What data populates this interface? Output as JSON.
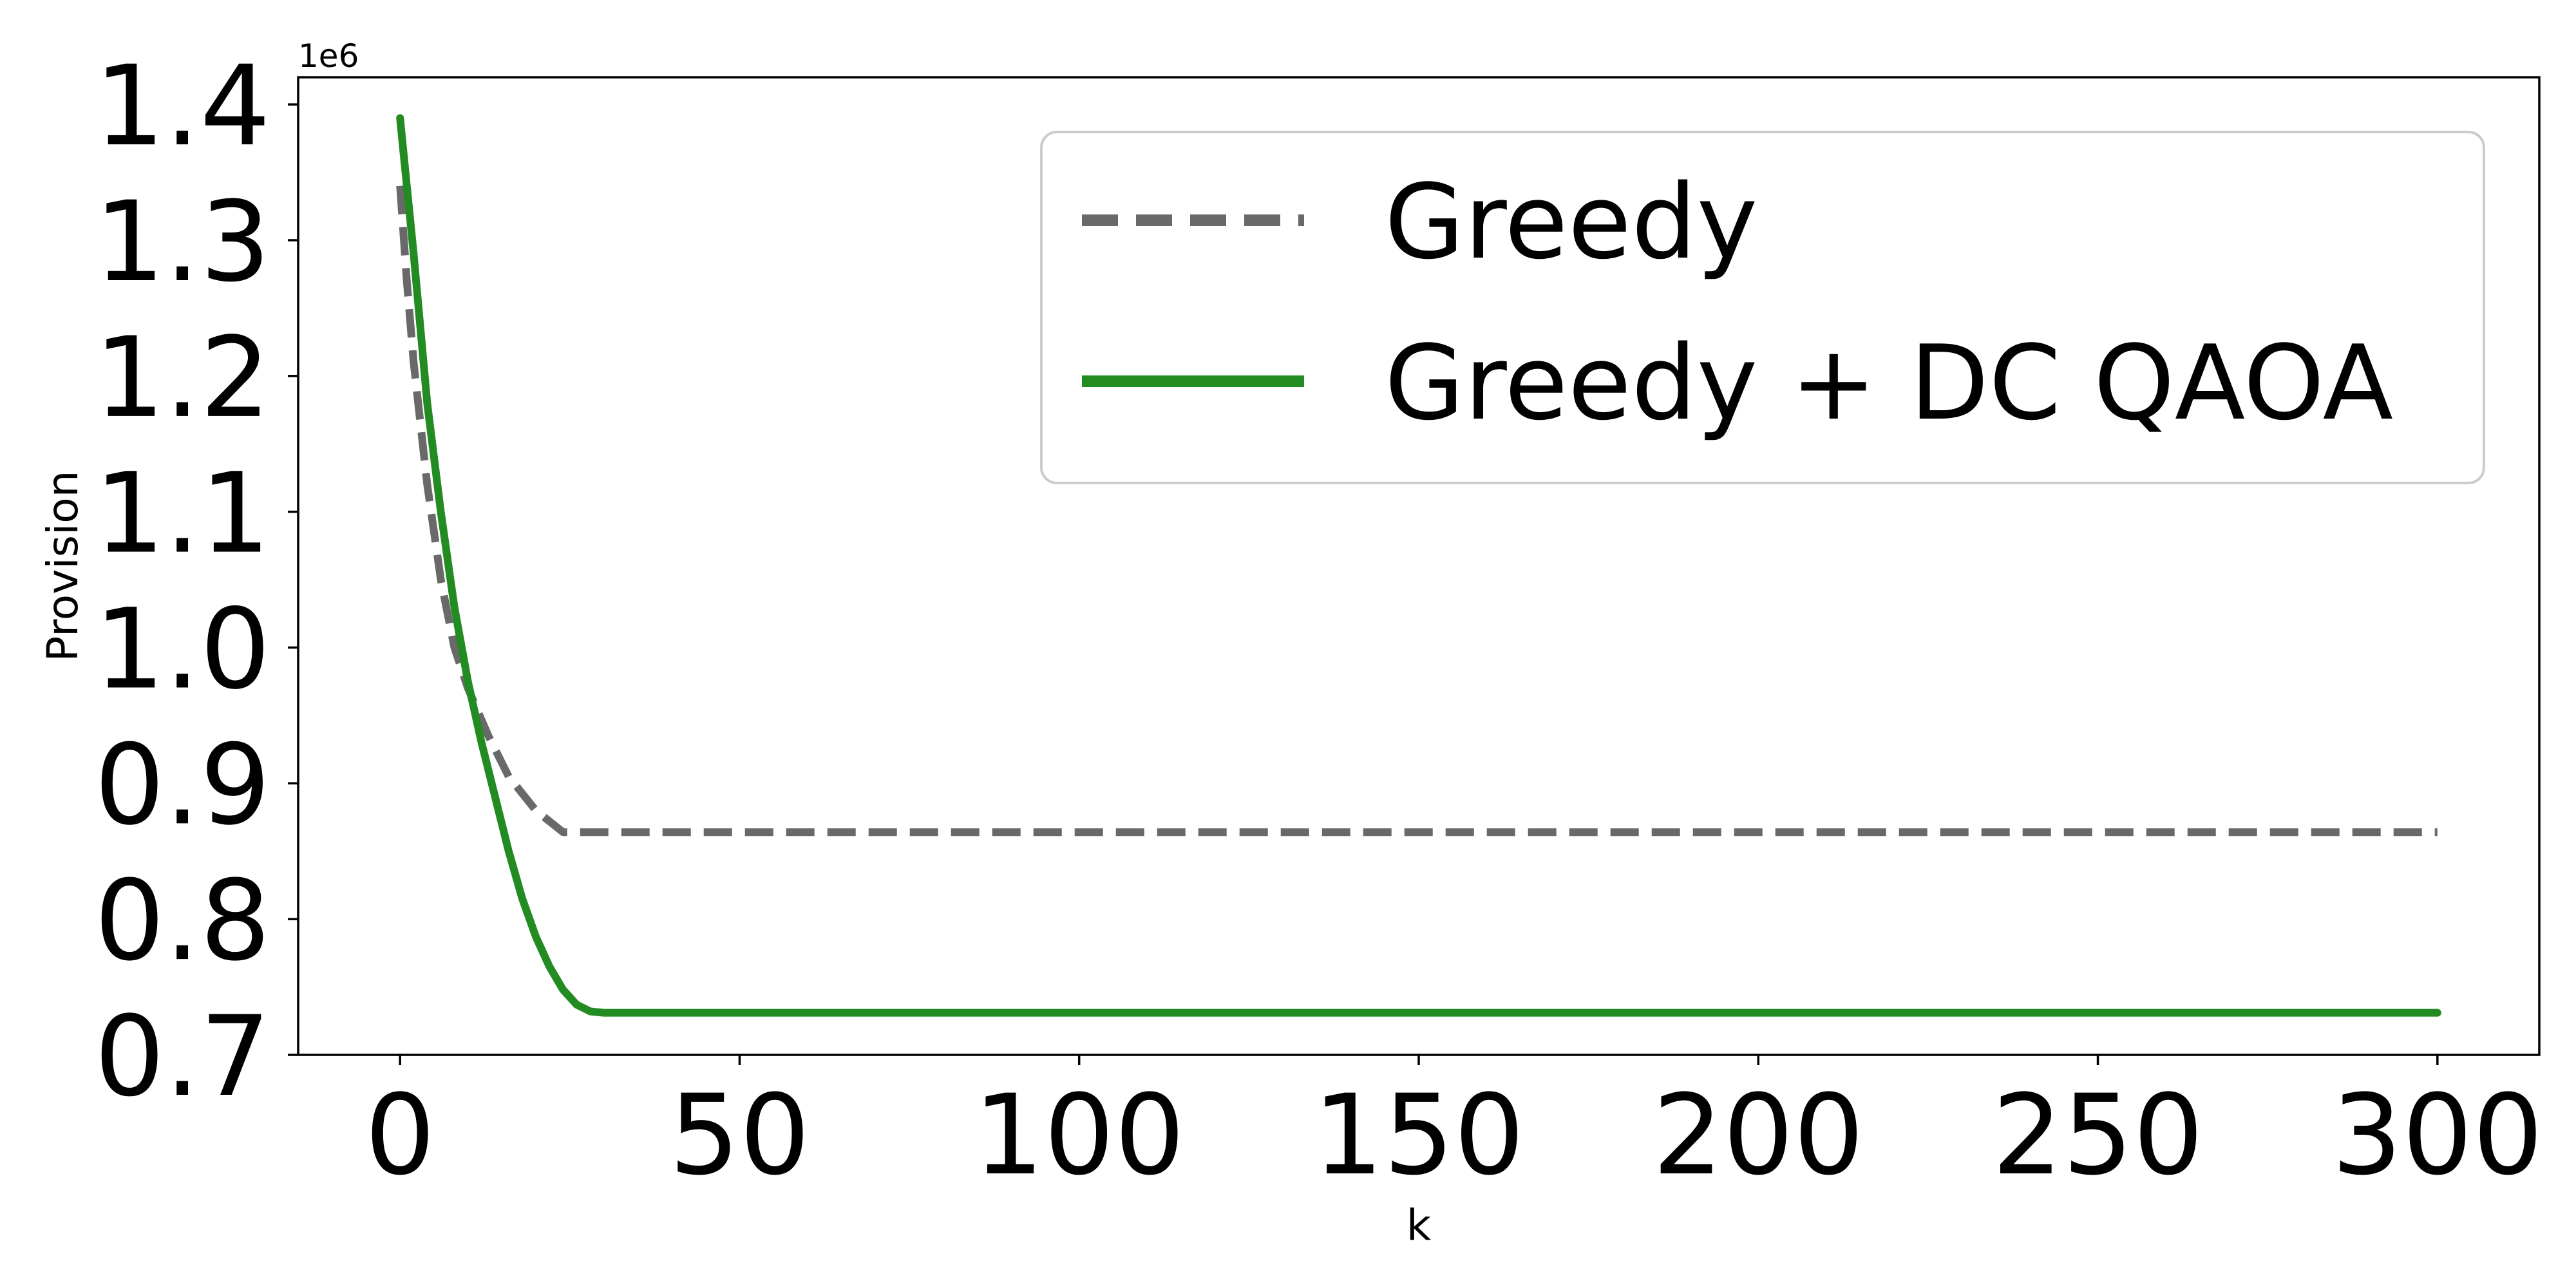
{
  "chart_data": {
    "type": "line",
    "title": "",
    "xlabel": "k",
    "ylabel": "Provision",
    "y_offset_label": "1e6",
    "xlim": [
      -15,
      315
    ],
    "ylim": [
      0.7,
      1.42
    ],
    "xticks": [
      0,
      50,
      100,
      150,
      200,
      250,
      300
    ],
    "xtick_labels": [
      "0",
      "50",
      "100",
      "150",
      "200",
      "250",
      "300"
    ],
    "yticks": [
      0.7,
      0.8,
      0.9,
      1.0,
      1.1,
      1.2,
      1.3,
      1.4
    ],
    "ytick_labels": [
      "0.7",
      "0.8",
      "0.9",
      "1.0",
      "1.1",
      "1.2",
      "1.3",
      "1.4"
    ],
    "grid": false,
    "legend_position": "top-right",
    "series": [
      {
        "name": "Greedy",
        "color": "#696969",
        "style": "dashed",
        "x": [
          0,
          1,
          2,
          4,
          6,
          8,
          10,
          13,
          16,
          20,
          24,
          30,
          50,
          100,
          150,
          200,
          250,
          300
        ],
        "y": [
          1.34,
          1.27,
          1.21,
          1.12,
          1.05,
          1.0,
          0.97,
          0.935,
          0.905,
          0.88,
          0.864,
          0.864,
          0.864,
          0.864,
          0.864,
          0.864,
          0.864,
          0.864
        ]
      },
      {
        "name": "Greedy + DC QAOA",
        "color": "#228b22",
        "style": "solid",
        "x": [
          0,
          1,
          2,
          4,
          6,
          8,
          10,
          12,
          14,
          16,
          18,
          20,
          22,
          24,
          26,
          28,
          30,
          50,
          100,
          150,
          200,
          250,
          300
        ],
        "y": [
          1.39,
          1.34,
          1.29,
          1.18,
          1.1,
          1.03,
          0.975,
          0.93,
          0.89,
          0.85,
          0.815,
          0.787,
          0.765,
          0.748,
          0.737,
          0.732,
          0.731,
          0.731,
          0.731,
          0.731,
          0.731,
          0.731,
          0.731
        ]
      }
    ]
  }
}
